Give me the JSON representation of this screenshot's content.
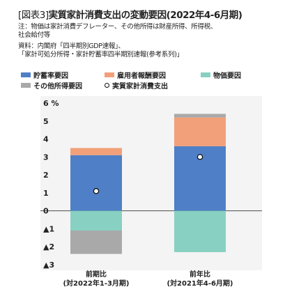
{
  "header": {
    "fig_tag": "[図表3]",
    "title": "実質家計消費支出の変動要因(2022年4-6月期)"
  },
  "notes": {
    "line1": "注：物価は家計消費デフレーター、その他所得は財産所得、所得税、",
    "line2": "社会給付等",
    "line3": "資料：内閣府「四半期別GDP速報」、",
    "line4": "「家計可処分所得・家計貯蓄率四半期別速報(参考系列)」"
  },
  "colors": {
    "savings": "#4f7fc6",
    "employee": "#f2a07a",
    "price": "#88d0c2",
    "other": "#a9a9a9",
    "plot_bg": "#f4f4f4"
  },
  "chart_data": {
    "type": "bar",
    "stacked": true,
    "title": "実質家計消費支出の変動要因(2022年4-6月期)",
    "categories": [
      "前期比\n(対2022年1-3月期)",
      "前年比\n(対2021年4-6月期)"
    ],
    "category_lines": [
      [
        "前期比",
        "(対2022年1-3月期)"
      ],
      [
        "前年比",
        "(対2021年4-6月期)"
      ]
    ],
    "series": [
      {
        "name": "貯蓄率要因",
        "values": [
          3.1,
          3.6
        ]
      },
      {
        "name": "雇用者報酬要因",
        "values": [
          0.4,
          1.6
        ]
      },
      {
        "name": "物価要因",
        "values": [
          -1.1,
          -2.3
        ]
      },
      {
        "name": "その他所得要因",
        "values": [
          -1.3,
          0.2
        ]
      }
    ],
    "line_series": {
      "name": "実質家計消費支出",
      "values": [
        1.1,
        3.0
      ]
    },
    "ylim": [
      -3,
      6
    ],
    "yticks": [
      "▲3",
      "▲2",
      "▲1",
      "0",
      "1",
      "2",
      "3",
      "4",
      "5",
      "6 %"
    ],
    "ytick_values": [
      -3,
      -2,
      -1,
      0,
      1,
      2,
      3,
      4,
      5,
      6
    ],
    "legend_position": "top",
    "grid": false
  }
}
